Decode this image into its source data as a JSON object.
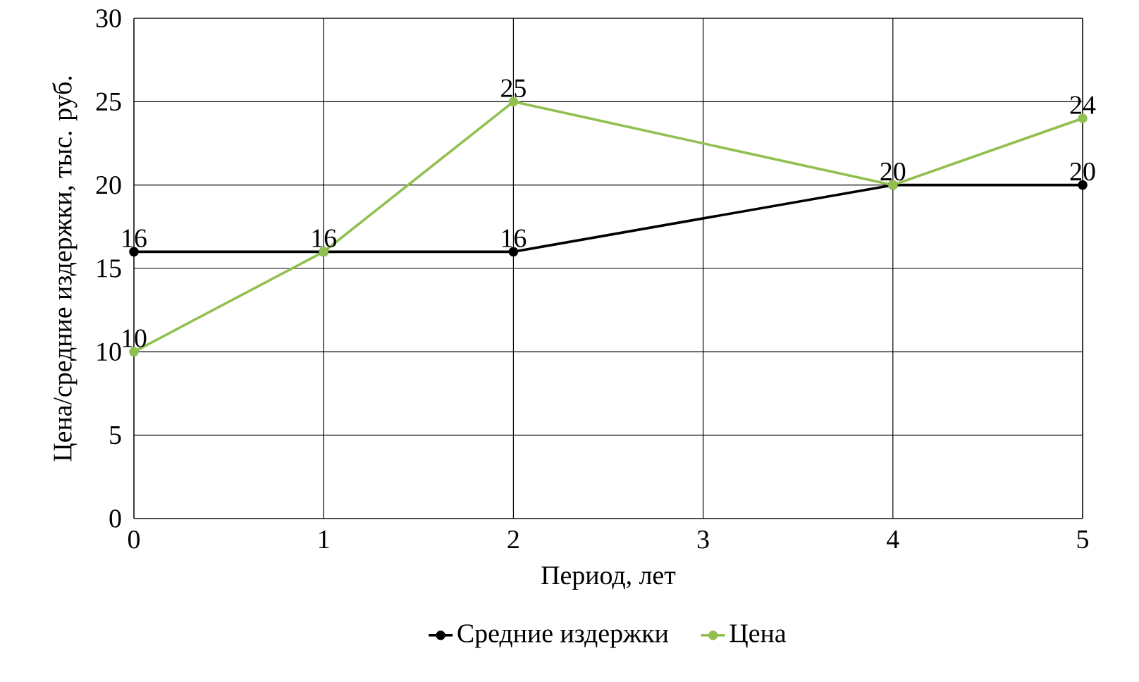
{
  "chart_data": {
    "type": "line",
    "xlabel": "Период, лет",
    "ylabel": "Цена/средние издержки, тыс. руб.",
    "xlim": [
      0,
      5
    ],
    "xticks": [
      0,
      1,
      2,
      3,
      4,
      5
    ],
    "ylim": [
      0,
      30
    ],
    "yticks": [
      0,
      5,
      10,
      15,
      20,
      25,
      30
    ],
    "grid": true,
    "legend": "bottom",
    "marker": "circle",
    "line_style": "solid",
    "series": [
      {
        "name": "Средние издержки",
        "color": "#000000",
        "x": [
          0,
          1,
          2,
          4,
          5
        ],
        "values": [
          16,
          16,
          16,
          20,
          20
        ],
        "value_labels": [
          "16",
          "16",
          "16",
          "20",
          "20"
        ]
      },
      {
        "name": "Цена",
        "color": "#92c050",
        "x": [
          0,
          1,
          2,
          4,
          5
        ],
        "values": [
          10,
          16,
          25,
          20,
          24
        ],
        "value_labels": [
          "10",
          null,
          "25",
          null,
          "24"
        ]
      }
    ]
  }
}
